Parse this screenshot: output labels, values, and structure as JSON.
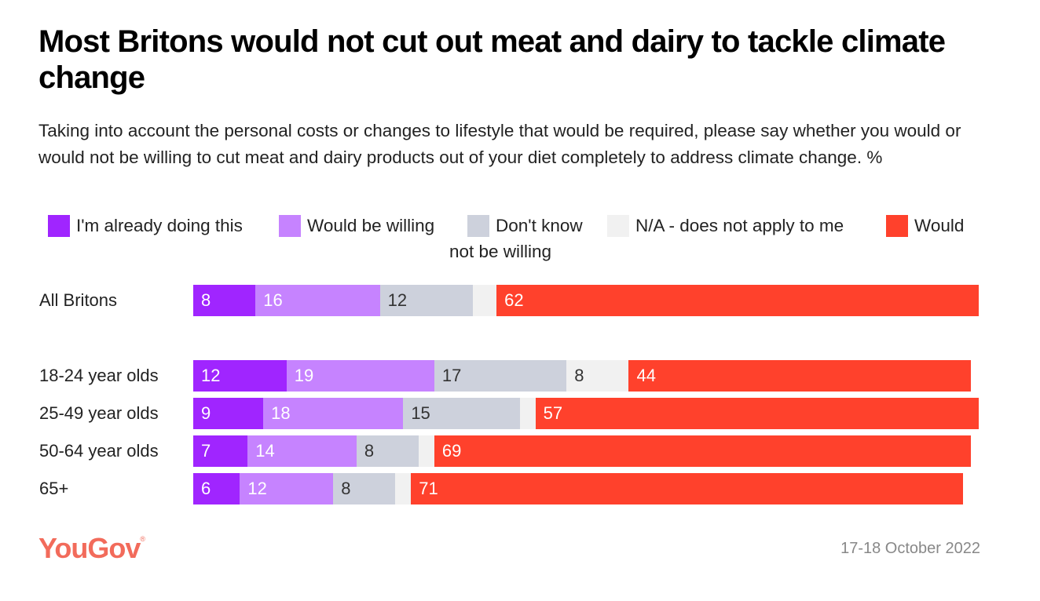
{
  "chart_data": {
    "type": "bar",
    "orientation": "horizontal-stacked",
    "title": "Most Britons would not cut out meat and dairy to tackle climate change",
    "subtitle": "Taking into account the personal costs or changes to lifestyle that would be required, please say whether you would or would not be willing to cut meat and dairy products out of your diet completely to address climate change. %",
    "categories": [
      "All Britons",
      "18-24 year olds",
      "25-49 year olds",
      "50-64 year olds",
      "65+"
    ],
    "series": [
      {
        "name": "I'm already doing this",
        "color": "#a025ff",
        "text_color": "#ffffff",
        "values": [
          8,
          12,
          9,
          7,
          6
        ],
        "labels": [
          "8",
          "12",
          "9",
          "7",
          "6"
        ]
      },
      {
        "name": "Would be willing",
        "color": "#c683ff",
        "text_color": "#ffffff",
        "values": [
          16,
          19,
          18,
          14,
          12
        ],
        "labels": [
          "16",
          "19",
          "18",
          "14",
          "12"
        ]
      },
      {
        "name": "Don't know",
        "color": "#cdd1dc",
        "text_color": "#333333",
        "values": [
          12,
          17,
          15,
          8,
          8
        ],
        "labels": [
          "12",
          "17",
          "15",
          "8",
          "8"
        ]
      },
      {
        "name": "N/A - does not apply to me",
        "color": "#f1f1f1",
        "text_color": "#333333",
        "values": [
          3,
          8,
          2,
          2,
          2
        ],
        "labels": [
          "",
          "8",
          "",
          "",
          ""
        ]
      },
      {
        "name": "Would not be willing",
        "color": "#ff412c",
        "text_color": "#ffffff",
        "values": [
          62,
          44,
          57,
          69,
          71
        ],
        "labels": [
          "62",
          "44",
          "57",
          "69",
          "71"
        ]
      }
    ],
    "legend_position": "top",
    "grid": false
  },
  "legend_text": {
    "s0": "I'm already doing this",
    "s1": "Would be willing",
    "s2": "Don't know",
    "s3": "N/A - does not apply to me",
    "s4a": "Would",
    "s4b": "not be willing"
  },
  "footer": {
    "brand": "YouGov",
    "date": "17-18 October 2022"
  }
}
